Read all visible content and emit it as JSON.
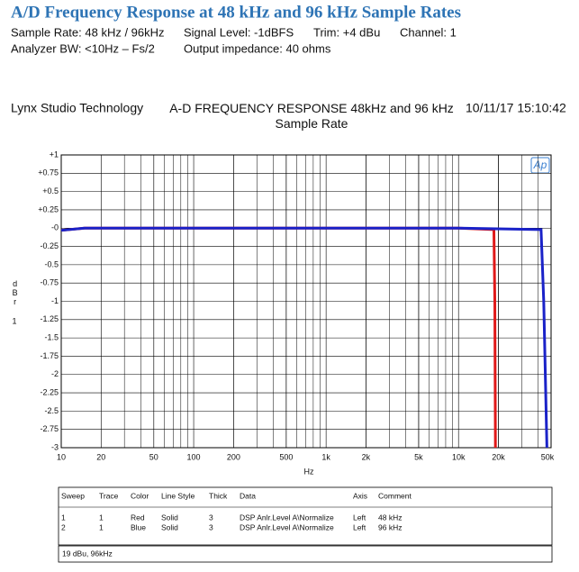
{
  "header": {
    "title": "A/D Frequency Response at 48 kHz and 96 kHz Sample Rates",
    "line1": [
      "Sample Rate: 48 kHz / 96kHz",
      "Signal Level: -1dBFS",
      "Trim: +4 dBu",
      "Channel: 1"
    ],
    "line2": [
      "Analyzer BW: <10Hz – Fs/2",
      "Output impedance: 40 ohms"
    ]
  },
  "chart_data": {
    "type": "line",
    "company": "Lynx Studio Technology",
    "title": "A-D FREQUENCY RESPONSE  48kHz and 96 kHz Sample Rate",
    "timestamp": "10/11/17 15:10:42",
    "logo": "Ap",
    "xlabel": "Hz",
    "ylabel": "dBr",
    "ylabel_note": "1",
    "xscale": "log",
    "grid": true,
    "xlim": [
      10,
      50000
    ],
    "ylim": [
      -3,
      1
    ],
    "xticks": [
      10,
      20,
      50,
      100,
      200,
      500,
      {
        "value": 1000,
        "label": "1k"
      },
      {
        "value": 2000,
        "label": "2k"
      },
      {
        "value": 5000,
        "label": "5k"
      },
      {
        "value": 10000,
        "label": "10k"
      },
      {
        "value": 20000,
        "label": "20k"
      },
      {
        "value": 50000,
        "label": "50k"
      }
    ],
    "yticks": [
      {
        "value": 1,
        "label": "+1"
      },
      {
        "value": 0.75,
        "label": "+0.75"
      },
      {
        "value": 0.5,
        "label": "+0.5"
      },
      {
        "value": 0.25,
        "label": "+0.25"
      },
      {
        "value": 0,
        "label": "-0"
      },
      -0.25,
      -0.5,
      -0.75,
      -1,
      -1.25,
      -1.5,
      -1.75,
      -2,
      -2.25,
      -2.5,
      -2.75,
      -3
    ],
    "series": [
      {
        "color": "#e01818",
        "x": [
          10,
          15,
          30,
          100,
          1000,
          10000,
          18500,
          18800,
          19000
        ],
        "values": [
          -0.03,
          0,
          0,
          0,
          0,
          0,
          -0.02,
          -1,
          -3
        ]
      },
      {
        "color": "#1a22c8",
        "x": [
          10,
          15,
          30,
          100,
          1000,
          10000,
          42000,
          44000,
          46500
        ],
        "values": [
          -0.03,
          0,
          0,
          0,
          0,
          0,
          -0.02,
          -1,
          -3
        ]
      }
    ]
  },
  "table": {
    "header": [
      "Sweep",
      "Trace",
      "Color",
      "Line Style",
      "Thick",
      "Data",
      "Axis",
      "Comment"
    ],
    "rows": [
      [
        "1",
        "1",
        "Red",
        "Solid",
        "3",
        "DSP Anlr.Level A\\Normalize",
        "Left",
        "48 kHz"
      ],
      [
        "2",
        "1",
        "Blue",
        "Solid",
        "3",
        "DSP Anlr.Level A\\Normalize",
        "Left",
        "96 kHz"
      ]
    ]
  },
  "footer_note": "19 dBu, 96kHz"
}
